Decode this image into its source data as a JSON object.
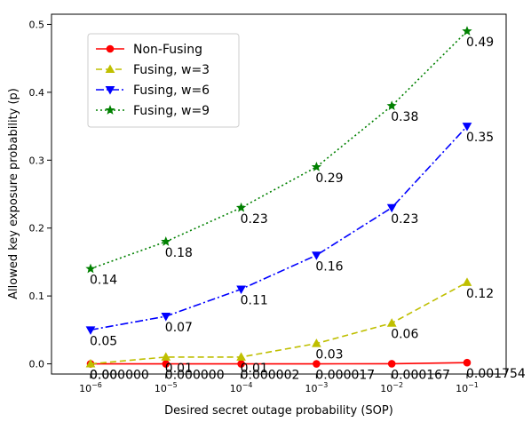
{
  "chart_data": {
    "type": "line",
    "xlabel": "Desired secret outage probability (SOP)",
    "ylabel": "Allowed key exposure probability (p)",
    "x_scale": "log",
    "x": [
      1e-06,
      1e-05,
      0.0001,
      0.001,
      0.01,
      0.1
    ],
    "x_tick_labels": [
      {
        "base": "10",
        "exp": "−6"
      },
      {
        "base": "10",
        "exp": "−5"
      },
      {
        "base": "10",
        "exp": "−4"
      },
      {
        "base": "10",
        "exp": "−3"
      },
      {
        "base": "10",
        "exp": "−2"
      },
      {
        "base": "10",
        "exp": "−1"
      }
    ],
    "ylim": [
      -0.015,
      0.515
    ],
    "y_ticks": [
      "0.0",
      "0.1",
      "0.2",
      "0.3",
      "0.4",
      "0.5"
    ],
    "grid": false,
    "legend_position": "top-left",
    "series": [
      {
        "name": "Non-Fusing",
        "color": "#ff0000",
        "line_style": "solid",
        "marker": "circle",
        "values": [
          0.0,
          0.0,
          2e-06,
          1.7e-05,
          0.000167,
          0.001754
        ],
        "labels": [
          "0.000000",
          "0.000000",
          "0.000002",
          "0.000017",
          "0.000167",
          "0.001754"
        ]
      },
      {
        "name": "Fusing, w=3",
        "color": "#bfbf00",
        "line_style": "dashed",
        "marker": "triangle-up",
        "values": [
          0.0,
          0.01,
          0.01,
          0.03,
          0.06,
          0.12
        ],
        "labels": [
          "0.00",
          "0.01",
          "0.01",
          "0.03",
          "0.06",
          "0.12"
        ]
      },
      {
        "name": "Fusing, w=6",
        "color": "#0000ff",
        "line_style": "dashdot",
        "marker": "triangle-down",
        "values": [
          0.05,
          0.07,
          0.11,
          0.16,
          0.23,
          0.35
        ],
        "labels": [
          "0.05",
          "0.07",
          "0.11",
          "0.16",
          "0.23",
          "0.35"
        ]
      },
      {
        "name": "Fusing, w=9",
        "color": "#008000",
        "line_style": "dotted",
        "marker": "star",
        "values": [
          0.14,
          0.18,
          0.23,
          0.29,
          0.38,
          0.49
        ],
        "labels": [
          "0.14",
          "0.18",
          "0.23",
          "0.29",
          "0.38",
          "0.49"
        ]
      }
    ]
  }
}
